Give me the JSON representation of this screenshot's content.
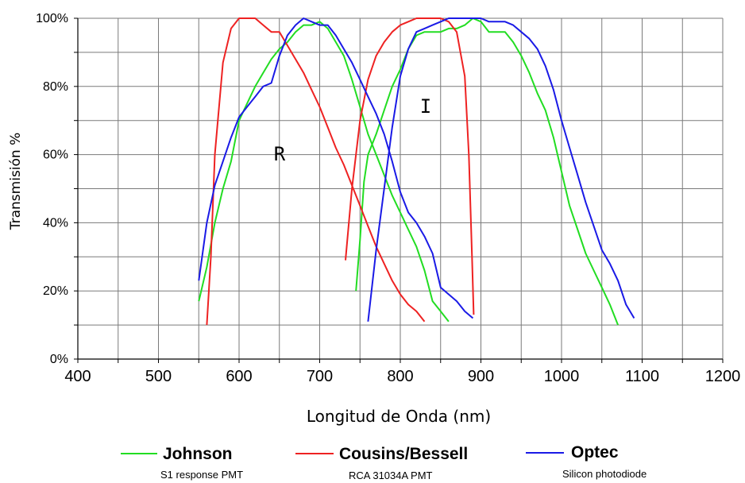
{
  "chart_data": {
    "type": "line",
    "title": "",
    "xlabel": "Longitud de Onda (nm)",
    "ylabel": "Transmisión %",
    "xlim": [
      400,
      1200
    ],
    "ylim": [
      0,
      100
    ],
    "x_ticks": [
      "400",
      "500",
      "600",
      "700",
      "800",
      "900",
      "1000",
      "1100",
      "1200"
    ],
    "y_ticks": [
      "0%",
      "20%",
      "40%",
      "60%",
      "80%",
      "100%"
    ],
    "grid": true,
    "legend_position": "bottom",
    "annotations": [
      {
        "text": "R",
        "x": 650,
        "y": 63
      },
      {
        "text": "I",
        "x": 830,
        "y": 80
      }
    ],
    "series": [
      {
        "name": "Johnson",
        "subtitle": "S1 response PMT",
        "color": "#22dd22",
        "segments": [
          [
            [
              550,
              17
            ],
            [
              560,
              27
            ],
            [
              570,
              40
            ],
            [
              580,
              50
            ],
            [
              590,
              58
            ],
            [
              600,
              70
            ],
            [
              610,
              75
            ],
            [
              620,
              80
            ],
            [
              630,
              84
            ],
            [
              640,
              88
            ],
            [
              650,
              91
            ],
            [
              660,
              93
            ],
            [
              670,
              96
            ],
            [
              680,
              98
            ],
            [
              690,
              98
            ],
            [
              700,
              99
            ],
            [
              710,
              97
            ],
            [
              720,
              93
            ],
            [
              730,
              89
            ],
            [
              740,
              82
            ],
            [
              750,
              74
            ],
            [
              760,
              66
            ],
            [
              770,
              60
            ],
            [
              780,
              54
            ],
            [
              790,
              48
            ],
            [
              800,
              43
            ],
            [
              810,
              38
            ],
            [
              820,
              33
            ],
            [
              830,
              26
            ],
            [
              840,
              17
            ],
            [
              850,
              14
            ],
            [
              860,
              11
            ]
          ],
          [
            [
              745,
              20
            ],
            [
              750,
              35
            ],
            [
              755,
              52
            ],
            [
              760,
              60
            ],
            [
              770,
              66
            ],
            [
              780,
              73
            ],
            [
              790,
              80
            ],
            [
              800,
              85
            ],
            [
              810,
              91
            ],
            [
              820,
              95
            ],
            [
              830,
              96
            ],
            [
              840,
              96
            ],
            [
              850,
              96
            ],
            [
              860,
              97
            ],
            [
              870,
              97
            ],
            [
              880,
              98
            ],
            [
              890,
              100
            ],
            [
              900,
              99
            ],
            [
              910,
              96
            ],
            [
              920,
              96
            ],
            [
              930,
              96
            ],
            [
              940,
              93
            ],
            [
              950,
              89
            ],
            [
              960,
              84
            ],
            [
              970,
              78
            ],
            [
              980,
              73
            ],
            [
              990,
              65
            ],
            [
              1000,
              55
            ],
            [
              1010,
              45
            ],
            [
              1020,
              38
            ],
            [
              1030,
              31
            ],
            [
              1040,
              26
            ],
            [
              1050,
              21
            ],
            [
              1060,
              16
            ],
            [
              1070,
              10
            ]
          ]
        ]
      },
      {
        "name": "Cousins/Bessell",
        "subtitle": "RCA 31034A  PMT",
        "color": "#ee2222",
        "segments": [
          [
            [
              560,
              10
            ],
            [
              565,
              30
            ],
            [
              570,
              60
            ],
            [
              580,
              87
            ],
            [
              590,
              97
            ],
            [
              600,
              100
            ],
            [
              610,
              100
            ],
            [
              620,
              100
            ],
            [
              630,
              98
            ],
            [
              640,
              96
            ],
            [
              650,
              96
            ],
            [
              660,
              92
            ],
            [
              670,
              88
            ],
            [
              680,
              84
            ],
            [
              690,
              79
            ],
            [
              700,
              74
            ],
            [
              710,
              68
            ],
            [
              720,
              62
            ],
            [
              730,
              57
            ],
            [
              740,
              51
            ],
            [
              750,
              45
            ],
            [
              760,
              39
            ],
            [
              770,
              33
            ],
            [
              780,
              28
            ],
            [
              790,
              23
            ],
            [
              800,
              19
            ],
            [
              810,
              16
            ],
            [
              820,
              14
            ],
            [
              830,
              11
            ]
          ],
          [
            [
              732,
              29
            ],
            [
              740,
              50
            ],
            [
              750,
              70
            ],
            [
              760,
              82
            ],
            [
              770,
              89
            ],
            [
              780,
              93
            ],
            [
              790,
              96
            ],
            [
              800,
              98
            ],
            [
              810,
              99
            ],
            [
              820,
              100
            ],
            [
              830,
              100
            ],
            [
              840,
              100
            ],
            [
              850,
              100
            ],
            [
              860,
              99
            ],
            [
              870,
              96
            ],
            [
              880,
              83
            ],
            [
              885,
              60
            ],
            [
              889,
              30
            ],
            [
              891,
              13
            ]
          ]
        ]
      },
      {
        "name": "Optec",
        "subtitle": "Silicon photodiode",
        "color": "#1a1ae6",
        "segments": [
          [
            [
              550,
              23
            ],
            [
              560,
              40
            ],
            [
              570,
              51
            ],
            [
              580,
              58
            ],
            [
              590,
              65
            ],
            [
              600,
              71
            ],
            [
              610,
              74
            ],
            [
              620,
              77
            ],
            [
              630,
              80
            ],
            [
              640,
              81
            ],
            [
              650,
              89
            ],
            [
              660,
              95
            ],
            [
              670,
              98
            ],
            [
              680,
              100
            ],
            [
              690,
              99
            ],
            [
              700,
              98
            ],
            [
              710,
              98
            ],
            [
              720,
              95
            ],
            [
              730,
              91
            ],
            [
              740,
              87
            ],
            [
              750,
              82
            ],
            [
              760,
              77
            ],
            [
              770,
              72
            ],
            [
              780,
              66
            ],
            [
              790,
              58
            ],
            [
              800,
              49
            ],
            [
              810,
              43
            ],
            [
              820,
              40
            ],
            [
              830,
              36
            ],
            [
              840,
              31
            ],
            [
              850,
              21
            ],
            [
              860,
              19
            ],
            [
              870,
              17
            ],
            [
              880,
              14
            ],
            [
              890,
              12
            ]
          ],
          [
            [
              760,
              11
            ],
            [
              770,
              32
            ],
            [
              780,
              50
            ],
            [
              790,
              68
            ],
            [
              800,
              83
            ],
            [
              810,
              91
            ],
            [
              820,
              96
            ],
            [
              830,
              97
            ],
            [
              840,
              98
            ],
            [
              850,
              99
            ],
            [
              860,
              100
            ],
            [
              870,
              100
            ],
            [
              880,
              100
            ],
            [
              890,
              100
            ],
            [
              900,
              100
            ],
            [
              910,
              99
            ],
            [
              920,
              99
            ],
            [
              930,
              99
            ],
            [
              940,
              98
            ],
            [
              950,
              96
            ],
            [
              960,
              94
            ],
            [
              970,
              91
            ],
            [
              980,
              86
            ],
            [
              990,
              79
            ],
            [
              1000,
              70
            ],
            [
              1010,
              62
            ],
            [
              1020,
              54
            ],
            [
              1030,
              46
            ],
            [
              1040,
              39
            ],
            [
              1050,
              32
            ],
            [
              1060,
              28
            ],
            [
              1070,
              23
            ],
            [
              1080,
              16
            ],
            [
              1090,
              12
            ]
          ]
        ]
      }
    ]
  }
}
